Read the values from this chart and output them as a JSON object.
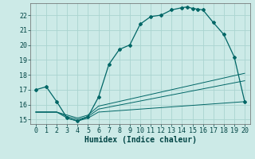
{
  "xlabel": "Humidex (Indice chaleur)",
  "bg_color": "#cceae7",
  "line_color": "#006666",
  "grid_color": "#aad4d0",
  "xlim": [
    -0.5,
    20.5
  ],
  "ylim": [
    14.7,
    22.8
  ],
  "xticks": [
    0,
    1,
    2,
    3,
    4,
    5,
    6,
    7,
    8,
    9,
    10,
    11,
    12,
    13,
    14,
    15,
    16,
    17,
    18,
    19,
    20
  ],
  "yticks": [
    15,
    16,
    17,
    18,
    19,
    20,
    21,
    22
  ],
  "main_line_x": [
    0,
    1,
    2,
    3,
    4,
    5,
    6,
    7,
    8,
    9,
    10,
    11,
    12,
    13,
    14,
    14.5,
    15,
    15.5,
    16,
    17,
    18,
    19,
    20
  ],
  "main_line_y": [
    17.0,
    17.2,
    16.2,
    15.1,
    14.9,
    15.2,
    16.5,
    18.7,
    19.7,
    20.0,
    21.4,
    21.9,
    22.0,
    22.35,
    22.5,
    22.55,
    22.45,
    22.4,
    22.35,
    21.5,
    20.7,
    19.2,
    16.2
  ],
  "line2_x": [
    0,
    2,
    3,
    4,
    5,
    6,
    20
  ],
  "line2_y": [
    15.5,
    15.5,
    15.1,
    14.9,
    15.1,
    15.5,
    16.2
  ],
  "line3_x": [
    0,
    2,
    3,
    4,
    5,
    6,
    20
  ],
  "line3_y": [
    15.5,
    15.5,
    15.2,
    15.0,
    15.2,
    15.7,
    17.6
  ],
  "line4_x": [
    0,
    2,
    3,
    4,
    5,
    6,
    20
  ],
  "line4_y": [
    15.5,
    15.5,
    15.3,
    15.1,
    15.3,
    15.9,
    18.1
  ],
  "xlabel_fontsize": 7,
  "tick_fontsize": 6
}
